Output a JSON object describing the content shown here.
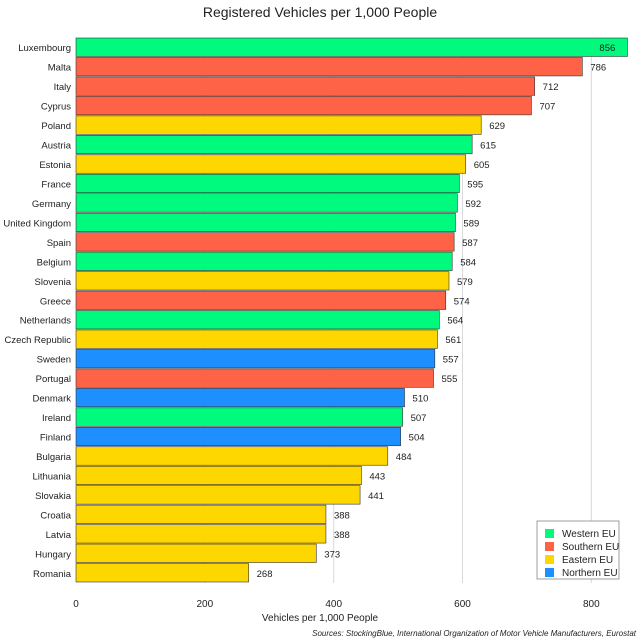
{
  "colors": {
    "Western EU": "#00FA7D",
    "Southern EU": "#FF6347",
    "Eastern EU": "#FFD700",
    "Northern EU": "#1E8FFF",
    "grid": "#d9d9d9",
    "bar_border": "#333333"
  },
  "chart_data": {
    "type": "bar",
    "orientation": "horizontal",
    "title": "Registered Vehicles per 1,000 People",
    "xlabel": "Vehicles per 1,000 People",
    "ylabel": "",
    "xlim": [
      0,
      860
    ],
    "xticks": [
      0,
      200,
      400,
      600,
      800
    ],
    "grid": true,
    "legend_position": "bottom-right",
    "legend": [
      "Western EU",
      "Southern EU",
      "Eastern EU",
      "Northern EU"
    ],
    "source": "Sources: StockingBlue, International Organization of Motor Vehicle Manufacturers, Eurostat",
    "categories": [
      "Luxembourg",
      "Malta",
      "Italy",
      "Cyprus",
      "Poland",
      "Austria",
      "Estonia",
      "France",
      "Germany",
      "United Kingdom",
      "Spain",
      "Belgium",
      "Slovenia",
      "Greece",
      "Netherlands",
      "Czech Republic",
      "Sweden",
      "Portugal",
      "Denmark",
      "Ireland",
      "Finland",
      "Bulgaria",
      "Lithuania",
      "Slovakia",
      "Croatia",
      "Latvia",
      "Hungary",
      "Romania"
    ],
    "values": [
      856,
      786,
      712,
      707,
      629,
      615,
      605,
      595,
      592,
      589,
      587,
      584,
      579,
      574,
      564,
      561,
      557,
      555,
      510,
      507,
      504,
      484,
      443,
      441,
      388,
      388,
      373,
      268
    ],
    "groups": [
      "Western EU",
      "Southern EU",
      "Southern EU",
      "Southern EU",
      "Eastern EU",
      "Western EU",
      "Eastern EU",
      "Western EU",
      "Western EU",
      "Western EU",
      "Southern EU",
      "Western EU",
      "Eastern EU",
      "Southern EU",
      "Western EU",
      "Eastern EU",
      "Northern EU",
      "Southern EU",
      "Northern EU",
      "Western EU",
      "Northern EU",
      "Eastern EU",
      "Eastern EU",
      "Eastern EU",
      "Eastern EU",
      "Eastern EU",
      "Eastern EU",
      "Eastern EU"
    ]
  }
}
